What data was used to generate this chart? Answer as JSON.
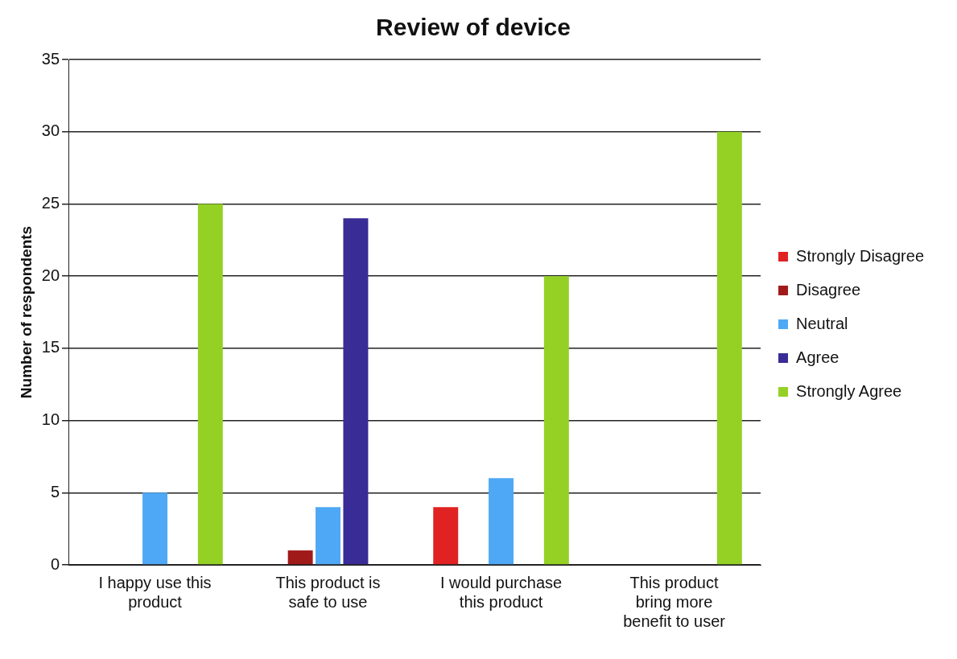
{
  "chart_data": {
    "type": "bar",
    "title": "Review of device",
    "ylabel": "Number of respondents",
    "categories": [
      "I happy use this product",
      "This product is safe to use",
      "I would purchase this product",
      "This product bring more benefit to user"
    ],
    "series": [
      {
        "name": "Strongly Disagree",
        "color": "#e02222",
        "values": [
          0,
          0,
          4,
          0
        ]
      },
      {
        "name": "Disagree",
        "color": "#a11a1a",
        "values": [
          0,
          1,
          0,
          0
        ]
      },
      {
        "name": "Neutral",
        "color": "#4ea8f5",
        "values": [
          5,
          4,
          6,
          0
        ]
      },
      {
        "name": "Agree",
        "color": "#3a2c96",
        "values": [
          0,
          24,
          0,
          0
        ]
      },
      {
        "name": "Strongly Agree",
        "color": "#94d124",
        "values": [
          25,
          0,
          20,
          30
        ]
      }
    ],
    "ylim": [
      0,
      35
    ],
    "yticks": [
      0,
      5,
      10,
      15,
      20,
      25,
      30,
      35
    ],
    "grid": "y",
    "legend": "right"
  }
}
